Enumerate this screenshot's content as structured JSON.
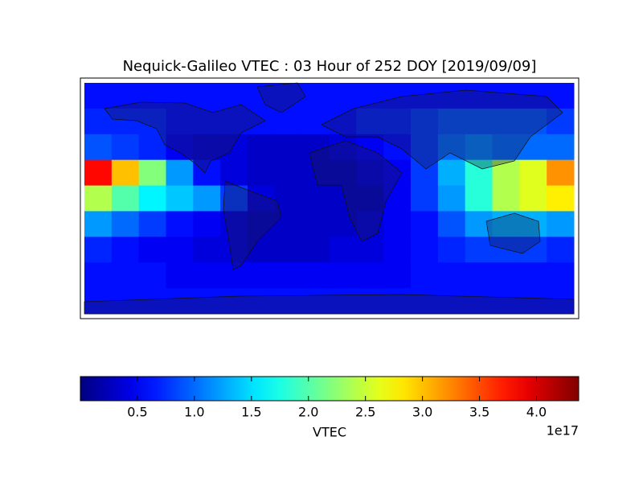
{
  "chart_data": {
    "type": "heatmap",
    "title": "Nequick-Galileo VTEC : 03 Hour of 252 DOY [2019/09/09]",
    "values": [
      [
        0.6,
        0.6,
        0.6,
        0.6,
        0.6,
        0.6,
        0.6,
        0.6,
        0.6,
        0.6,
        0.6,
        0.6,
        0.6,
        0.6,
        0.6,
        0.6,
        0.6,
        0.6
      ],
      [
        0.7,
        0.7,
        0.7,
        0.6,
        0.6,
        0.6,
        0.6,
        0.6,
        0.6,
        0.6,
        0.7,
        0.7,
        0.8,
        0.9,
        0.9,
        0.9,
        0.9,
        0.8
      ],
      [
        0.9,
        0.8,
        0.7,
        0.5,
        0.4,
        0.4,
        0.3,
        0.3,
        0.3,
        0.4,
        0.5,
        0.6,
        0.8,
        1.0,
        1.1,
        1.0,
        1.0,
        1.0
      ],
      [
        3.8,
        3.0,
        2.2,
        1.2,
        0.6,
        0.4,
        0.3,
        0.3,
        0.3,
        0.3,
        0.4,
        0.5,
        0.8,
        1.3,
        1.8,
        2.4,
        2.6,
        3.2
      ],
      [
        2.4,
        2.0,
        1.6,
        1.4,
        1.2,
        0.8,
        0.4,
        0.3,
        0.3,
        0.3,
        0.3,
        0.5,
        0.8,
        1.2,
        1.8,
        2.4,
        2.6,
        2.8
      ],
      [
        1.2,
        1.0,
        0.8,
        0.6,
        0.5,
        0.4,
        0.3,
        0.3,
        0.3,
        0.3,
        0.4,
        0.5,
        0.6,
        0.9,
        1.2,
        1.3,
        1.3,
        1.2
      ],
      [
        0.7,
        0.6,
        0.5,
        0.5,
        0.4,
        0.4,
        0.3,
        0.3,
        0.3,
        0.4,
        0.4,
        0.5,
        0.6,
        0.7,
        0.8,
        0.8,
        0.8,
        0.7
      ],
      [
        0.6,
        0.6,
        0.6,
        0.5,
        0.5,
        0.5,
        0.5,
        0.5,
        0.5,
        0.5,
        0.5,
        0.5,
        0.6,
        0.6,
        0.6,
        0.6,
        0.6,
        0.6
      ],
      [
        0.6,
        0.6,
        0.6,
        0.6,
        0.6,
        0.6,
        0.6,
        0.6,
        0.6,
        0.6,
        0.6,
        0.6,
        0.6,
        0.6,
        0.6,
        0.6,
        0.6,
        0.6
      ]
    ],
    "colormap": "jet",
    "colorbar": {
      "label": "VTEC",
      "offset_label": "1e17",
      "lim": [
        0,
        4.37
      ],
      "ticks": [
        0.5,
        {
          "value": 1,
          "label": "1.0"
        },
        1.5,
        {
          "value": 2,
          "label": "2.0"
        },
        2.5,
        {
          "value": 3,
          "label": "3.0"
        },
        3.5,
        {
          "value": 4,
          "label": "4.0"
        }
      ]
    }
  }
}
